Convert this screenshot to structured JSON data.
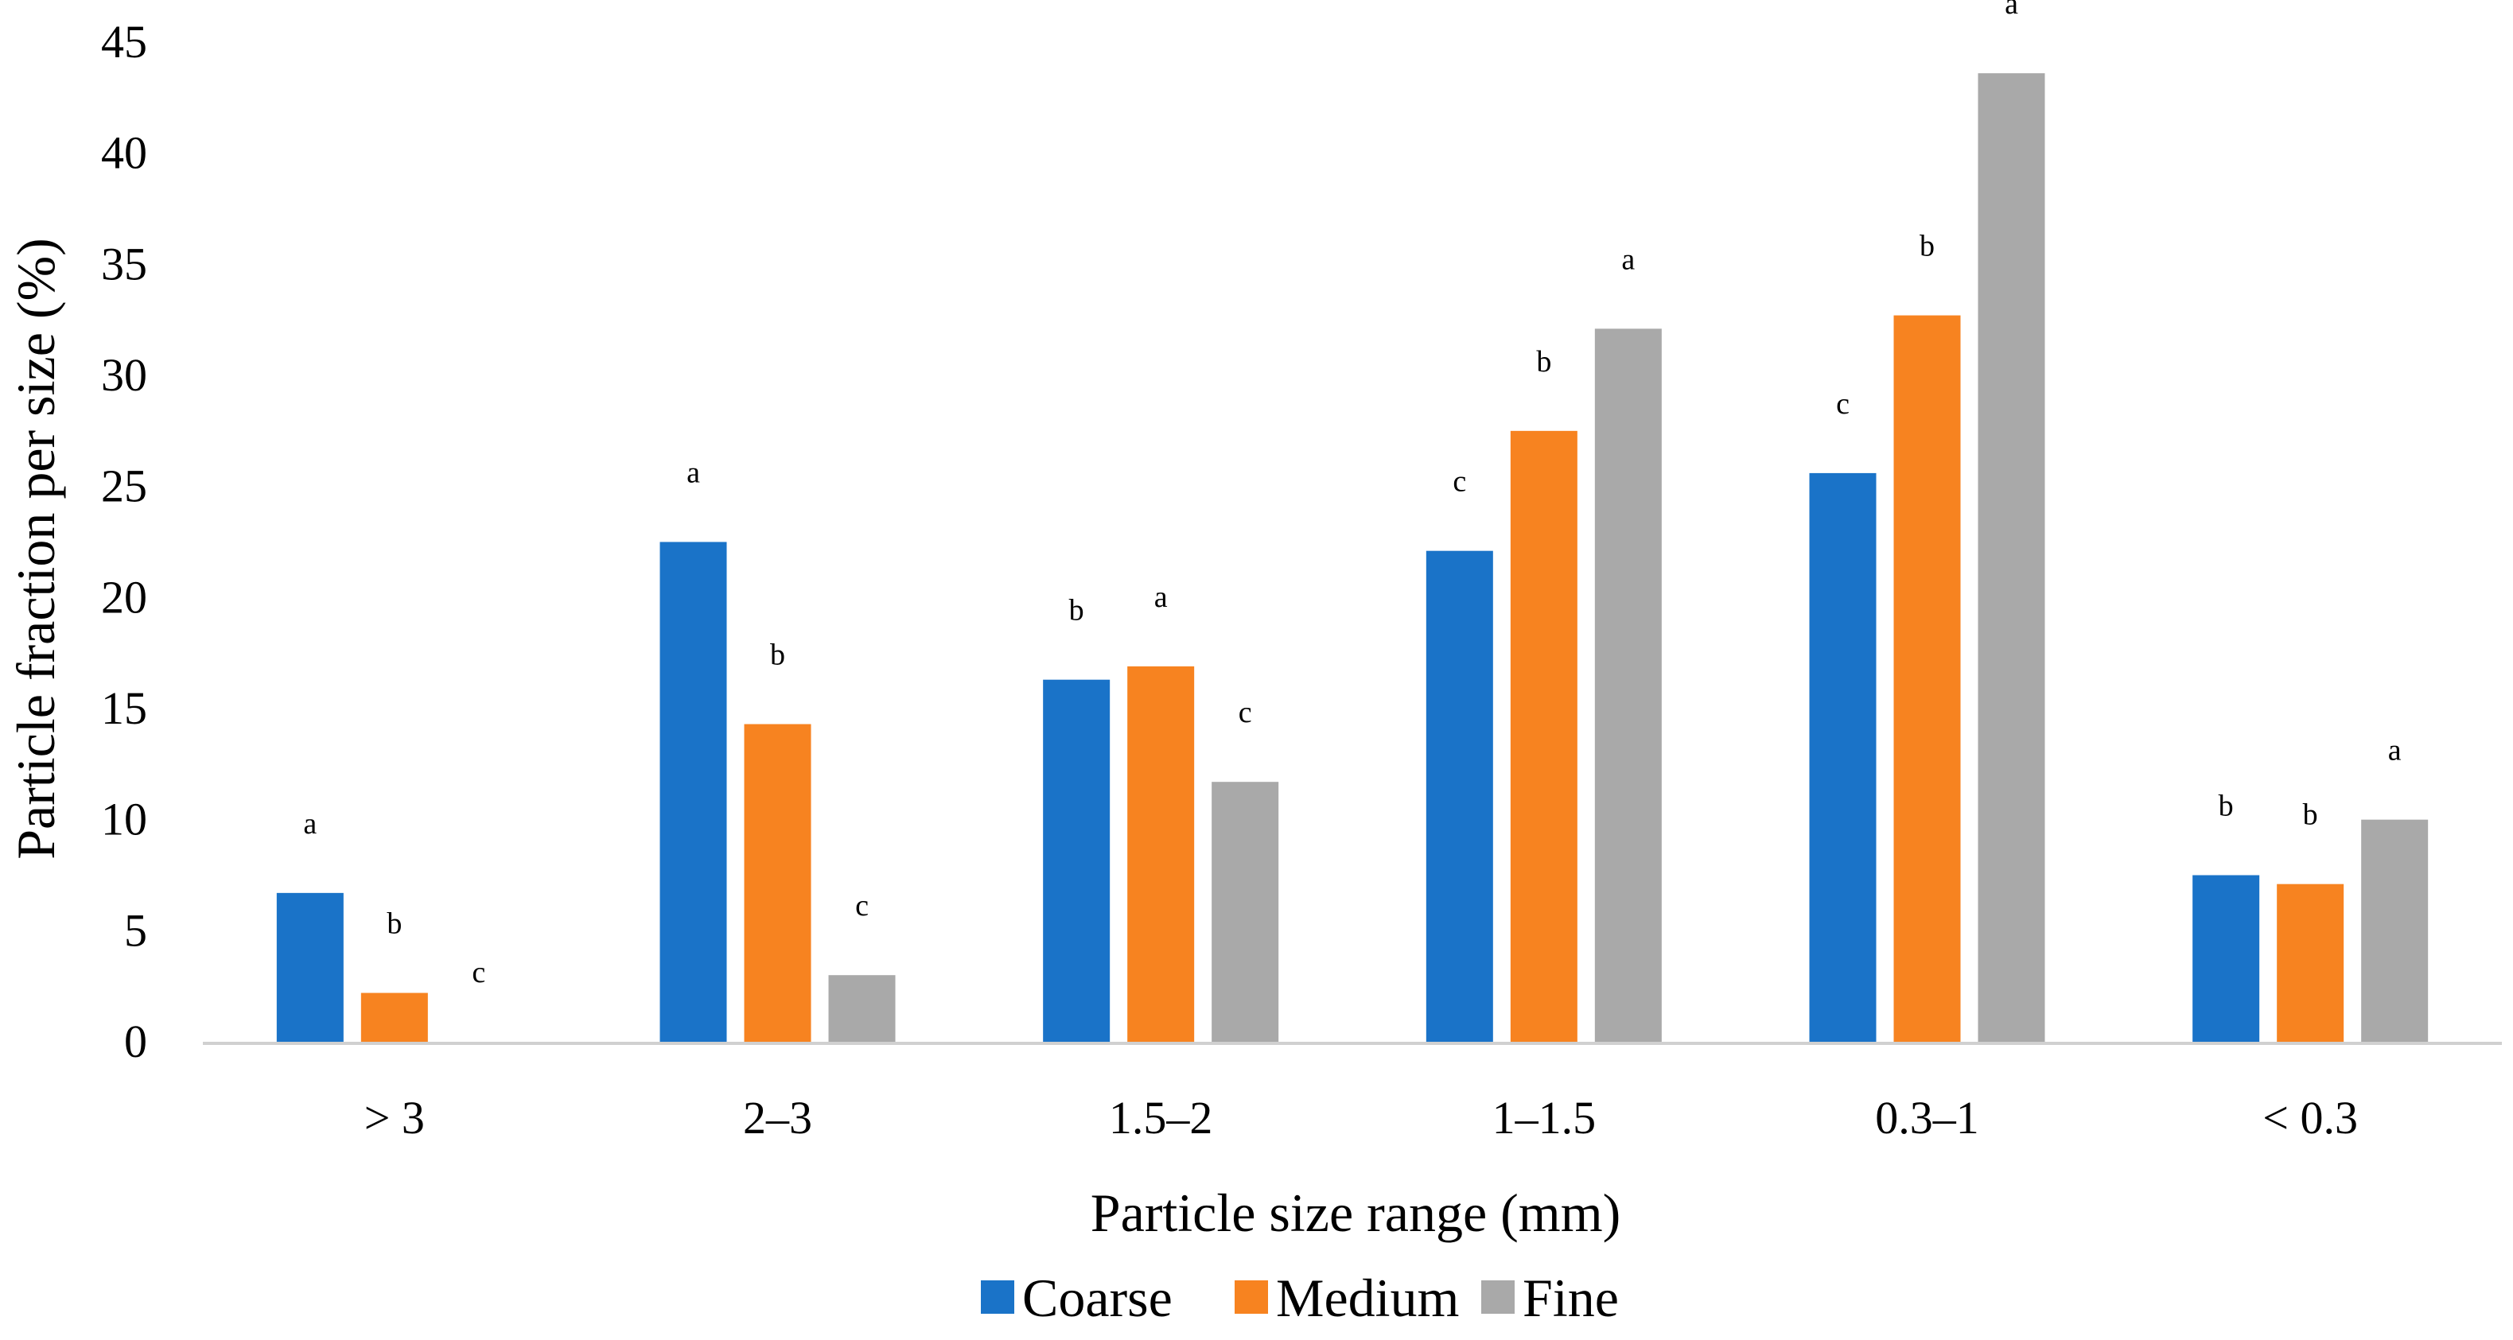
{
  "chart_data": {
    "type": "bar",
    "title": "",
    "xlabel": "Particle size range (mm)",
    "ylabel": "Particle fraction per size (%)",
    "ylim": [
      0,
      45
    ],
    "yticks": [
      0,
      5,
      10,
      15,
      20,
      25,
      30,
      35,
      40,
      45
    ],
    "grid": false,
    "legend_position": "bottom-center",
    "categories": [
      "> 3",
      "2–3",
      "1.5–2",
      "1–1.5",
      "0.3–1",
      "< 0.3"
    ],
    "series": [
      {
        "name": "Coarse",
        "color": "#1a73c8",
        "values": [
          6.7,
          22.5,
          16.3,
          22.1,
          25.6,
          7.5
        ],
        "labels": [
          "a",
          "a",
          "b",
          "c",
          "c",
          "b"
        ]
      },
      {
        "name": "Medium",
        "color": "#f78320",
        "values": [
          2.2,
          14.3,
          16.9,
          27.5,
          32.7,
          7.1
        ],
        "labels": [
          "b",
          "b",
          "a",
          "b",
          "b",
          "b"
        ]
      },
      {
        "name": "Fine",
        "color": "#a9a9a9",
        "values": [
          0,
          3.0,
          11.7,
          32.1,
          43.6,
          10.0
        ],
        "labels": [
          "c",
          "c",
          "c",
          "a",
          "a",
          "a"
        ]
      }
    ]
  }
}
